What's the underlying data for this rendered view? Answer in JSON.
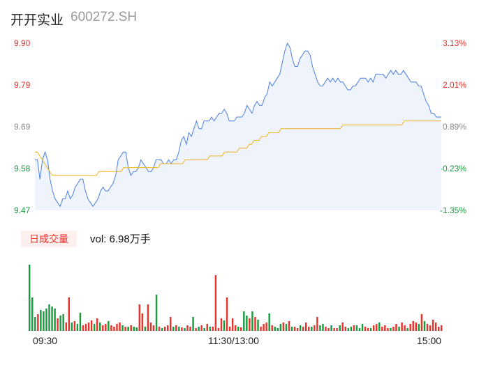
{
  "stock": {
    "name": "开开实业",
    "code": "600272.SH"
  },
  "price_axis": {
    "labels": [
      "9.90",
      "9.79",
      "9.69",
      "9.58",
      "9.47"
    ],
    "pct_labels": [
      "3.13%",
      "2.01%",
      "0.89%",
      "-0.23%",
      "-1.35%"
    ]
  },
  "volume_panel": {
    "badge": "日成交量",
    "summary": "vol: 6.98万手"
  },
  "time_axis": {
    "labels": [
      "09:30",
      "11:30/13:00",
      "15:00"
    ]
  },
  "colors": {
    "price_line": "#4a7fe0",
    "avg_line": "#f0b21e",
    "up": "#e8322a",
    "down": "#169b3d",
    "fill": "#eef3fc"
  },
  "chart_data": [
    {
      "type": "line",
      "ylim": [
        9.47,
        9.9
      ],
      "series": [
        {
          "values": [
            9.6,
            9.6,
            9.55,
            9.6,
            9.62,
            9.6,
            9.55,
            9.52,
            9.5,
            9.49,
            9.48,
            9.5,
            9.5,
            9.52,
            9.5,
            9.51,
            9.53,
            9.54,
            9.55,
            9.55,
            9.52,
            9.5,
            9.49,
            9.48,
            9.49,
            9.5,
            9.52,
            9.53,
            9.52,
            9.52,
            9.53,
            9.54,
            9.56,
            9.6,
            9.61,
            9.62,
            9.62,
            9.58,
            9.56,
            9.57,
            9.57,
            9.58,
            9.6,
            9.59,
            9.58,
            9.57,
            9.57,
            9.58,
            9.6,
            9.6,
            9.6,
            9.59,
            9.59,
            9.6,
            9.59,
            9.6,
            9.6,
            9.62,
            9.65,
            9.66,
            9.64,
            9.67,
            9.66,
            9.68,
            9.7,
            9.68,
            9.68,
            9.7,
            9.7,
            9.7,
            9.71,
            9.7,
            9.71,
            9.72,
            9.72,
            9.73,
            9.72,
            9.7,
            9.7,
            9.7,
            9.71,
            9.71,
            9.71,
            9.72,
            9.74,
            9.73,
            9.72,
            9.74,
            9.75,
            9.74,
            9.74,
            9.76,
            9.77,
            9.8,
            9.79,
            9.8,
            9.81,
            9.82,
            9.85,
            9.88,
            9.9,
            9.89,
            9.86,
            9.84,
            9.84,
            9.86,
            9.87,
            9.88,
            9.88,
            9.87,
            9.84,
            9.82,
            9.8,
            9.79,
            9.79,
            9.8,
            9.81,
            9.8,
            9.81,
            9.8,
            9.81,
            9.8,
            9.8,
            9.79,
            9.78,
            9.78,
            9.79,
            9.79,
            9.8,
            9.81,
            9.81,
            9.81,
            9.8,
            9.81,
            9.8,
            9.82,
            9.82,
            9.82,
            9.82,
            9.81,
            9.82,
            9.83,
            9.82,
            9.83,
            9.82,
            9.82,
            9.83,
            9.82,
            9.81,
            9.8,
            9.8,
            9.8,
            9.79,
            9.79,
            9.77,
            9.75,
            9.74,
            9.72,
            9.72,
            9.71,
            9.71,
            9.71
          ]
        },
        {
          "values": [
            9.62,
            9.62,
            9.61,
            9.6,
            9.59,
            9.58,
            9.57,
            9.56,
            9.56,
            9.56,
            9.56,
            9.56,
            9.56,
            9.56,
            9.56,
            9.56,
            9.56,
            9.56,
            9.56,
            9.56,
            9.56,
            9.56,
            9.56,
            9.56,
            9.56,
            9.56,
            9.57,
            9.57,
            9.57,
            9.57,
            9.57,
            9.57,
            9.57,
            9.57,
            9.57,
            9.57,
            9.58,
            9.58,
            9.58,
            9.58,
            9.58,
            9.58,
            9.58,
            9.58,
            9.58,
            9.58,
            9.58,
            9.58,
            9.58,
            9.58,
            9.58,
            9.59,
            9.59,
            9.59,
            9.59,
            9.59,
            9.59,
            9.59,
            9.59,
            9.59,
            9.59,
            9.6,
            9.6,
            9.6,
            9.6,
            9.6,
            9.6,
            9.6,
            9.6,
            9.6,
            9.6,
            9.61,
            9.61,
            9.61,
            9.61,
            9.61,
            9.61,
            9.62,
            9.62,
            9.62,
            9.62,
            9.62,
            9.62,
            9.63,
            9.63,
            9.63,
            9.63,
            9.64,
            9.64,
            9.65,
            9.65,
            9.65,
            9.66,
            9.66,
            9.66,
            9.67,
            9.67,
            9.67,
            9.67,
            9.67,
            9.68,
            9.68,
            9.68,
            9.68,
            9.68,
            9.68,
            9.68,
            9.68,
            9.68,
            9.68,
            9.68,
            9.68,
            9.68,
            9.68,
            9.68,
            9.68,
            9.68,
            9.68,
            9.68,
            9.68,
            9.68,
            9.68,
            9.68,
            9.68,
            9.68,
            9.69,
            9.69,
            9.69,
            9.69,
            9.69,
            9.69,
            9.69,
            9.69,
            9.69,
            9.69,
            9.69,
            9.69,
            9.69,
            9.69,
            9.69,
            9.69,
            9.69,
            9.69,
            9.69,
            9.69,
            9.69,
            9.69,
            9.69,
            9.69,
            9.69,
            9.7,
            9.7,
            9.7,
            9.7,
            9.7,
            9.7,
            9.7,
            9.7,
            9.7,
            9.7,
            9.7,
            9.7,
            9.7,
            9.7,
            9.7,
            9.7
          ]
        }
      ]
    },
    {
      "type": "bar",
      "values": [
        95,
        48,
        20,
        24,
        30,
        28,
        32,
        38,
        35,
        32,
        18,
        22,
        24,
        12,
        48,
        12,
        14,
        10,
        26,
        8,
        10,
        12,
        15,
        10,
        18,
        12,
        8,
        10,
        14,
        8,
        6,
        10,
        12,
        8,
        6,
        6,
        8,
        6,
        5,
        38,
        25,
        6,
        38,
        12,
        8,
        52,
        6,
        4,
        6,
        8,
        20,
        6,
        8,
        6,
        5,
        4,
        8,
        6,
        20,
        4,
        6,
        8,
        4,
        10,
        6,
        6,
        80,
        4,
        18,
        15,
        48,
        6,
        18,
        8,
        6,
        5,
        28,
        22,
        18,
        28,
        20,
        16,
        6,
        10,
        12,
        25,
        8,
        6,
        4,
        10,
        12,
        10,
        14,
        6,
        6,
        4,
        8,
        6,
        12,
        6,
        6,
        8,
        20,
        8,
        10,
        6,
        4,
        8,
        4,
        4,
        8,
        12,
        6,
        4,
        6,
        8,
        8,
        4,
        10,
        6,
        4,
        4,
        8,
        10,
        12,
        6,
        8,
        4,
        4,
        6,
        10,
        6,
        12,
        8,
        4,
        10,
        14,
        12,
        10,
        24,
        14,
        10,
        8,
        16,
        12,
        6,
        8
      ],
      "colors": [
        "down",
        "down",
        "down",
        "up",
        "down",
        "down",
        "down",
        "down",
        "down",
        "down",
        "up",
        "down",
        "down",
        "up",
        "up",
        "down",
        "up",
        "down",
        "down",
        "up",
        "up",
        "up",
        "up",
        "down",
        "up",
        "down",
        "up",
        "up",
        "down",
        "up",
        "up",
        "up",
        "up",
        "down",
        "up",
        "down",
        "up",
        "down",
        "down",
        "up",
        "up",
        "down",
        "up",
        "up",
        "up",
        "down",
        "up",
        "down",
        "up",
        "up",
        "up",
        "down",
        "up",
        "down",
        "up",
        "down",
        "up",
        "up",
        "down",
        "up",
        "down",
        "up",
        "down",
        "up",
        "down",
        "up",
        "up",
        "up",
        "up",
        "down",
        "up",
        "up",
        "up",
        "up",
        "down",
        "up",
        "down",
        "down",
        "up",
        "down",
        "up",
        "down",
        "up",
        "up",
        "up",
        "down",
        "up",
        "down",
        "down",
        "down",
        "up",
        "down",
        "up",
        "down",
        "up",
        "up",
        "down",
        "up",
        "up",
        "up",
        "down",
        "up",
        "up",
        "down",
        "down",
        "up",
        "up",
        "down",
        "up",
        "up",
        "down",
        "up",
        "up",
        "down",
        "down",
        "up",
        "down",
        "down",
        "down",
        "up",
        "up",
        "down",
        "up",
        "up",
        "down",
        "up",
        "up",
        "up",
        "down",
        "up",
        "up",
        "down",
        "up",
        "up",
        "down",
        "up",
        "up",
        "up",
        "down",
        "up",
        "down",
        "up",
        "up",
        "up",
        "up",
        "up",
        "up"
      ]
    }
  ]
}
